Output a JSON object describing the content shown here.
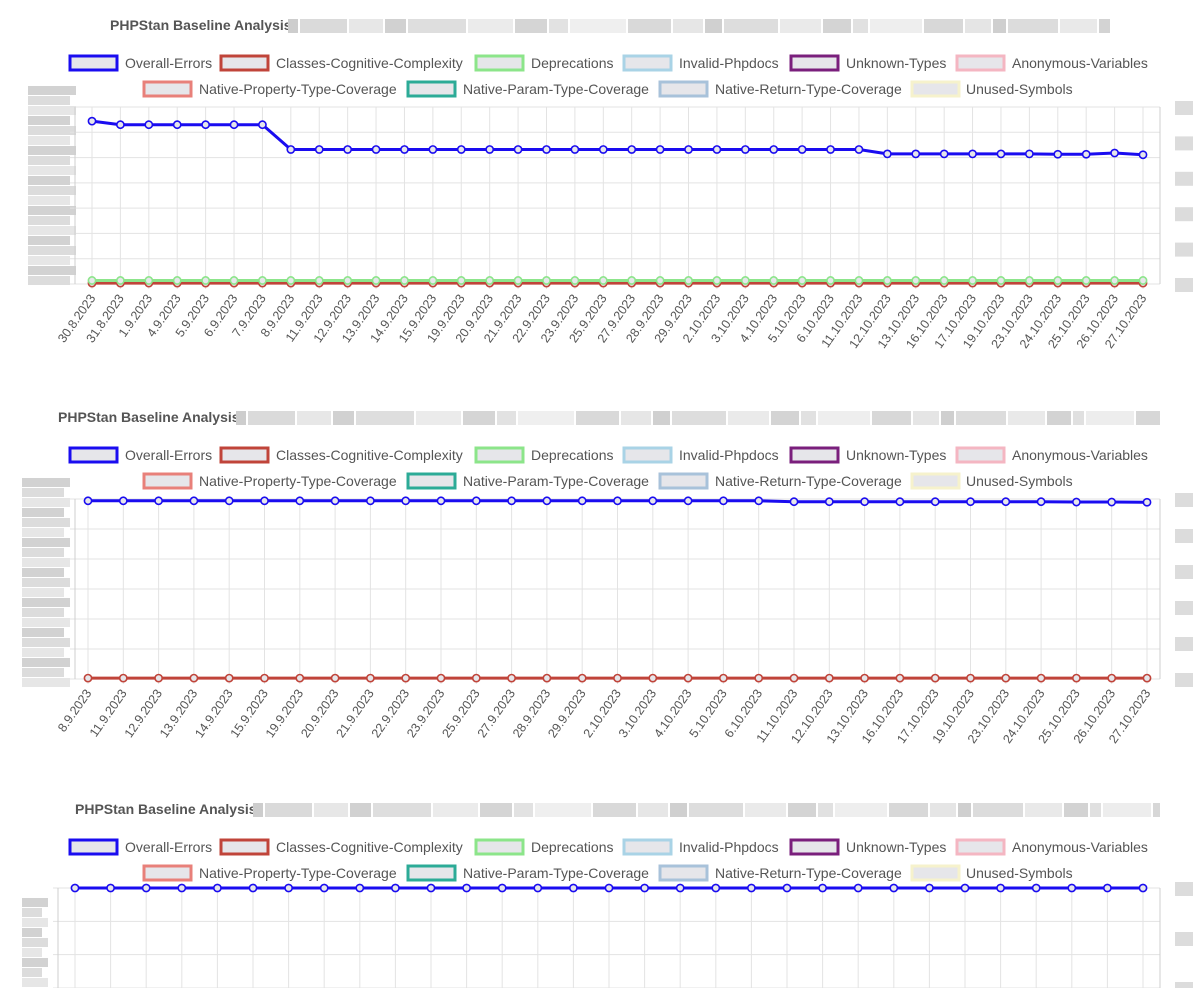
{
  "colors": {
    "Overall-Errors": {
      "stroke": "#1a0cf0",
      "fill": "#e6e6ea"
    },
    "Classes-Cognitive-Complexity": {
      "stroke": "#c0443a",
      "fill": "#e6e6ea"
    },
    "Deprecations": {
      "stroke": "#8ce58a",
      "fill": "#e6e6ea"
    },
    "Invalid-Phpdocs": {
      "stroke": "#a9d3e6",
      "fill": "#e6e6ea"
    },
    "Unknown-Types": {
      "stroke": "#7a1f7c",
      "fill": "#e6e6ea"
    },
    "Anonymous-Variables": {
      "stroke": "#f4b6c2",
      "fill": "#e6e6ea"
    },
    "Native-Property-Type-Coverage": {
      "stroke": "#e8807a",
      "fill": "#e6e6ea"
    },
    "Native-Param-Type-Coverage": {
      "stroke": "#2cab97",
      "fill": "#e6e6ea"
    },
    "Native-Return-Type-Coverage": {
      "stroke": "#a8c2da",
      "fill": "#e6e6ea"
    },
    "Unused-Symbols": {
      "stroke": "#f6f2cc",
      "fill": "#e6e6ea"
    }
  },
  "chart_data": [
    {
      "type": "line",
      "title": "PHPStan Baseline Analysis",
      "legend": [
        "Overall-Errors",
        "Classes-Cognitive-Complexity",
        "Deprecations",
        "Invalid-Phpdocs",
        "Unknown-Types",
        "Anonymous-Variables",
        "Native-Property-Type-Coverage",
        "Native-Param-Type-Coverage",
        "Native-Return-Type-Coverage",
        "Unused-Symbols"
      ],
      "legend_position": "top",
      "grid": true,
      "x": [
        "30.8.2023",
        "31.8.2023",
        "1.9.2023",
        "4.9.2023",
        "5.9.2023",
        "6.9.2023",
        "7.9.2023",
        "8.9.2023",
        "11.9.2023",
        "12.9.2023",
        "13.9.2023",
        "14.9.2023",
        "15.9.2023",
        "19.9.2023",
        "20.9.2023",
        "21.9.2023",
        "22.9.2023",
        "23.9.2023",
        "25.9.2023",
        "27.9.2023",
        "28.9.2023",
        "29.9.2023",
        "2.10.2023",
        "3.10.2023",
        "4.10.2023",
        "5.10.2023",
        "6.10.2023",
        "11.10.2023",
        "12.10.2023",
        "13.10.2023",
        "16.10.2023",
        "17.10.2023",
        "19.10.2023",
        "23.10.2023",
        "24.10.2023",
        "25.10.2023",
        "26.10.2023",
        "27.10.2023"
      ],
      "ylim": [
        0,
        1.0
      ],
      "series": [
        {
          "name": "Overall-Errors",
          "values": [
            0.92,
            0.9,
            0.9,
            0.9,
            0.9,
            0.9,
            0.9,
            0.76,
            0.76,
            0.76,
            0.76,
            0.76,
            0.76,
            0.76,
            0.76,
            0.76,
            0.76,
            0.76,
            0.76,
            0.76,
            0.76,
            0.76,
            0.76,
            0.76,
            0.76,
            0.76,
            0.76,
            0.76,
            0.735,
            0.735,
            0.735,
            0.735,
            0.735,
            0.735,
            0.733,
            0.733,
            0.74,
            0.73
          ]
        },
        {
          "name": "Deprecations",
          "values": [
            0.02,
            0.02,
            0.02,
            0.02,
            0.02,
            0.02,
            0.02,
            0.02,
            0.02,
            0.02,
            0.02,
            0.02,
            0.02,
            0.02,
            0.02,
            0.02,
            0.02,
            0.02,
            0.02,
            0.02,
            0.02,
            0.02,
            0.02,
            0.02,
            0.02,
            0.02,
            0.02,
            0.02,
            0.02,
            0.02,
            0.02,
            0.02,
            0.02,
            0.02,
            0.02,
            0.02,
            0.02,
            0.02
          ]
        },
        {
          "name": "Classes-Cognitive-Complexity",
          "values": [
            0.005,
            0.005,
            0.005,
            0.005,
            0.005,
            0.005,
            0.005,
            0.005,
            0.005,
            0.005,
            0.005,
            0.005,
            0.005,
            0.005,
            0.005,
            0.005,
            0.005,
            0.005,
            0.005,
            0.005,
            0.005,
            0.005,
            0.005,
            0.005,
            0.005,
            0.005,
            0.005,
            0.005,
            0.005,
            0.005,
            0.005,
            0.005,
            0.005,
            0.005,
            0.005,
            0.005,
            0.005,
            0.005
          ]
        }
      ]
    },
    {
      "type": "line",
      "title": "PHPStan Baseline Analysis",
      "legend": [
        "Overall-Errors",
        "Classes-Cognitive-Complexity",
        "Deprecations",
        "Invalid-Phpdocs",
        "Unknown-Types",
        "Anonymous-Variables",
        "Native-Property-Type-Coverage",
        "Native-Param-Type-Coverage",
        "Native-Return-Type-Coverage",
        "Unused-Symbols"
      ],
      "legend_position": "top",
      "grid": true,
      "x": [
        "8.9.2023",
        "11.9.2023",
        "12.9.2023",
        "13.9.2023",
        "14.9.2023",
        "15.9.2023",
        "19.9.2023",
        "20.9.2023",
        "21.9.2023",
        "22.9.2023",
        "23.9.2023",
        "25.9.2023",
        "27.9.2023",
        "28.9.2023",
        "29.9.2023",
        "2.10.2023",
        "3.10.2023",
        "4.10.2023",
        "5.10.2023",
        "6.10.2023",
        "11.10.2023",
        "12.10.2023",
        "13.10.2023",
        "16.10.2023",
        "17.10.2023",
        "19.10.2023",
        "23.10.2023",
        "24.10.2023",
        "25.10.2023",
        "26.10.2023",
        "27.10.2023"
      ],
      "ylim": [
        0,
        1.0
      ],
      "series": [
        {
          "name": "Overall-Errors",
          "values": [
            0.99,
            0.99,
            0.99,
            0.99,
            0.99,
            0.99,
            0.99,
            0.99,
            0.99,
            0.99,
            0.99,
            0.99,
            0.99,
            0.99,
            0.99,
            0.99,
            0.99,
            0.99,
            0.99,
            0.99,
            0.985,
            0.985,
            0.985,
            0.985,
            0.985,
            0.985,
            0.985,
            0.985,
            0.983,
            0.983,
            0.982
          ]
        },
        {
          "name": "Classes-Cognitive-Complexity",
          "values": [
            0.005,
            0.005,
            0.005,
            0.005,
            0.005,
            0.005,
            0.005,
            0.005,
            0.005,
            0.005,
            0.005,
            0.005,
            0.005,
            0.005,
            0.005,
            0.005,
            0.005,
            0.005,
            0.005,
            0.005,
            0.005,
            0.005,
            0.005,
            0.005,
            0.005,
            0.005,
            0.005,
            0.005,
            0.005,
            0.005,
            0.005
          ]
        }
      ]
    },
    {
      "type": "line",
      "title": "PHPStan Baseline Analysis",
      "legend": [
        "Overall-Errors",
        "Classes-Cognitive-Complexity",
        "Deprecations",
        "Invalid-Phpdocs",
        "Unknown-Types",
        "Anonymous-Variables",
        "Native-Property-Type-Coverage",
        "Native-Param-Type-Coverage",
        "Native-Return-Type-Coverage",
        "Unused-Symbols"
      ],
      "legend_position": "top",
      "grid": true,
      "ylim": [
        0,
        1.0
      ],
      "series": [
        {
          "name": "Overall-Errors",
          "values": [
            1,
            1,
            1,
            1,
            1,
            1,
            1,
            1,
            1,
            1,
            1,
            1,
            1,
            1,
            1,
            1,
            1,
            1,
            1,
            1,
            1,
            1,
            1,
            1,
            1,
            1,
            1,
            1,
            1,
            1,
            1
          ]
        }
      ]
    }
  ]
}
